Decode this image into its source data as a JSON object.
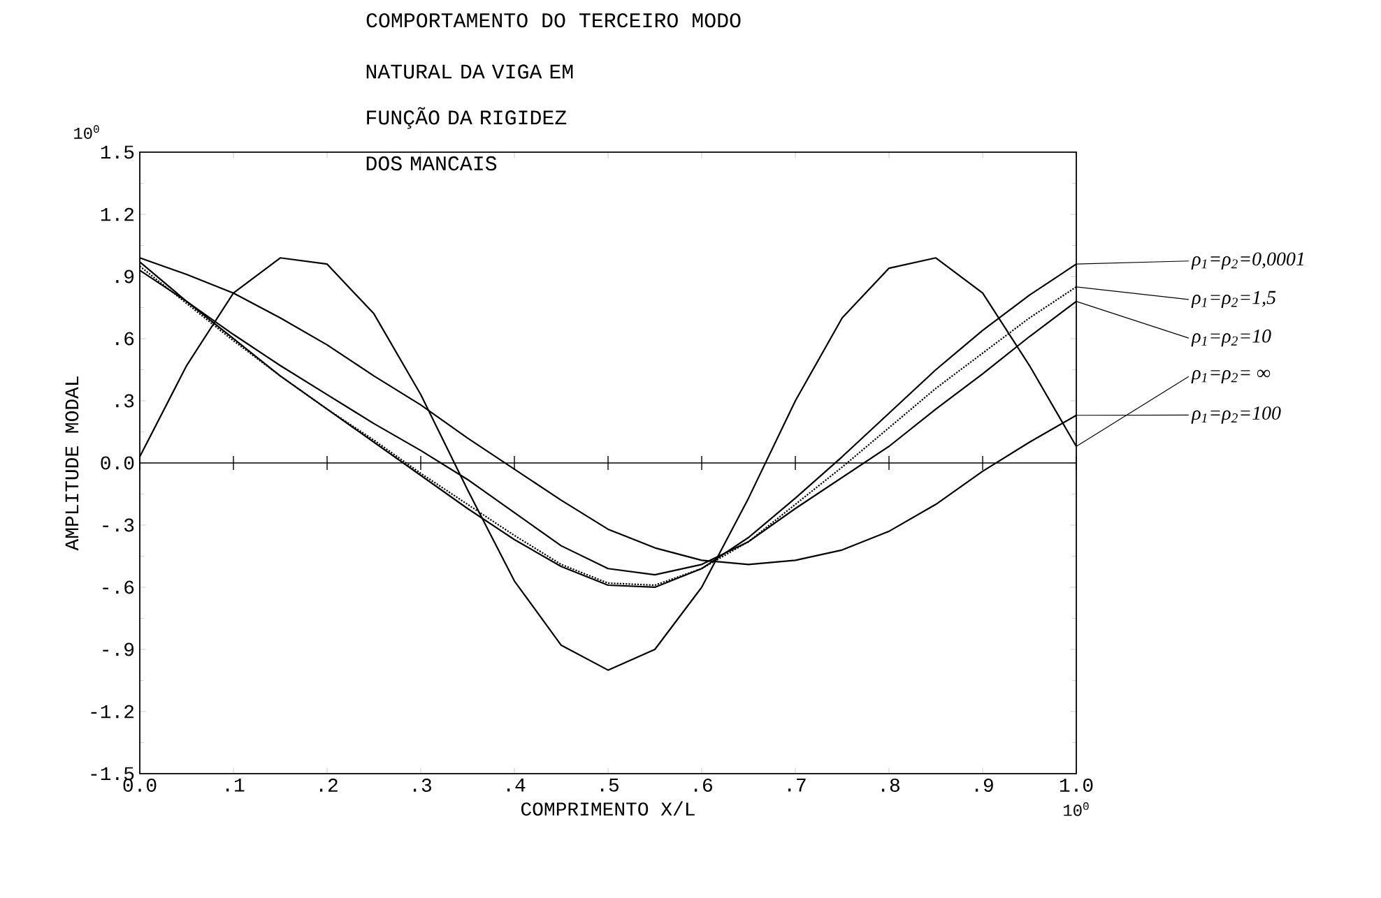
{
  "chart_data": {
    "type": "line",
    "title": "COMPORTAMENTO DO TERCEIRO MODO",
    "subtitle": "NATURAL DA VIGA EM FUNÇÃO DA RIGIDEZ DOS MANCAIS",
    "xlabel": "COMPRIMENTO X/L",
    "ylabel": "AMPLITUDE MODAL",
    "annotations": [
      "10$^{0}$",
      "10$^{0}$"
    ],
    "x": [
      0,
      0.05,
      0.1,
      0.15,
      0.2,
      0.25,
      0.3,
      0.35,
      0.4,
      0.45,
      0.5,
      0.55,
      0.6,
      0.65,
      0.7,
      0.75,
      0.8,
      0.85,
      0.9,
      0.95,
      1.0
    ],
    "series": [
      {
        "name": "ρ$_{1}$=ρ$_{2}$=0,0001",
        "color": "#000000",
        "line_style": "solid",
        "values": [
          0.97,
          0.78,
          0.6,
          0.42,
          0.26,
          0.1,
          -0.06,
          -0.22,
          -0.37,
          -0.5,
          -0.59,
          -0.6,
          -0.51,
          -0.36,
          -0.17,
          0.03,
          0.24,
          0.45,
          0.64,
          0.81,
          0.96
        ]
      },
      {
        "name": "ρ$_{1}$=ρ$_{2}$=1,5",
        "color": "#000000",
        "line_style": "dotted",
        "values": [
          0.95,
          0.77,
          0.59,
          0.42,
          0.26,
          0.11,
          -0.05,
          -0.2,
          -0.35,
          -0.49,
          -0.58,
          -0.59,
          -0.51,
          -0.38,
          -0.2,
          -0.02,
          0.17,
          0.36,
          0.53,
          0.7,
          0.85
        ]
      },
      {
        "name": "ρ$_{1}$=ρ$_{2}$=10",
        "color": "#000000",
        "line_style": "solid",
        "values": [
          0.93,
          0.78,
          0.62,
          0.47,
          0.33,
          0.19,
          0.06,
          -0.08,
          -0.24,
          -0.4,
          -0.51,
          -0.54,
          -0.49,
          -0.38,
          -0.22,
          -0.07,
          0.08,
          0.26,
          0.43,
          0.61,
          0.78
        ]
      },
      {
        "name": "ρ$_{1}$=ρ$_{2}$= ∞",
        "color": "#000000",
        "line_style": "solid",
        "values": [
          0.03,
          0.47,
          0.82,
          0.99,
          0.96,
          0.72,
          0.33,
          -0.13,
          -0.57,
          -0.88,
          -1.0,
          -0.9,
          -0.6,
          -0.17,
          0.3,
          0.7,
          0.94,
          0.99,
          0.82,
          0.47,
          0.08
        ]
      },
      {
        "name": "ρ$_{1}$=ρ$_{2}$=100",
        "color": "#000000",
        "line_style": "solid",
        "values": [
          0.99,
          0.91,
          0.82,
          0.7,
          0.57,
          0.42,
          0.28,
          0.12,
          -0.03,
          -0.18,
          -0.32,
          -0.41,
          -0.47,
          -0.49,
          -0.47,
          -0.42,
          -0.33,
          -0.2,
          -0.04,
          0.1,
          0.23
        ]
      }
    ],
    "ref_lines": [
      {
        "axis": "y",
        "value": 0,
        "label": null
      }
    ],
    "marker": "none",
    "xlim": [
      0,
      1.0
    ],
    "ylim": [
      -1.5,
      1.5
    ],
    "xticks": [
      {
        "value": 0,
        "label": "0.0"
      },
      {
        "value": 0.1,
        "label": ".1"
      },
      {
        "value": 0.2,
        "label": ".2"
      },
      {
        "value": 0.3,
        "label": ".3"
      },
      {
        "value": 0.4,
        "label": ".4"
      },
      {
        "value": 0.5,
        "label": ".5"
      },
      {
        "value": 0.6,
        "label": ".6"
      },
      {
        "value": 0.7,
        "label": ".7"
      },
      {
        "value": 0.8,
        "label": ".8"
      },
      {
        "value": 0.9,
        "label": ".9"
      },
      {
        "value": 1.0,
        "label": "1.0"
      }
    ],
    "yticks": [
      -1.5,
      -1.2,
      {
        "value": -0.9,
        "label": "-.9"
      },
      {
        "value": -0.6,
        "label": "-.6"
      },
      {
        "value": -0.3,
        "label": "-.3"
      },
      {
        "value": 0,
        "label": "0.0"
      },
      {
        "value": 0.3,
        "label": ".3"
      },
      {
        "value": 0.6,
        "label": ".6"
      },
      {
        "value": 0.9,
        "label": ".9"
      },
      1.2,
      1.5
    ]
  }
}
